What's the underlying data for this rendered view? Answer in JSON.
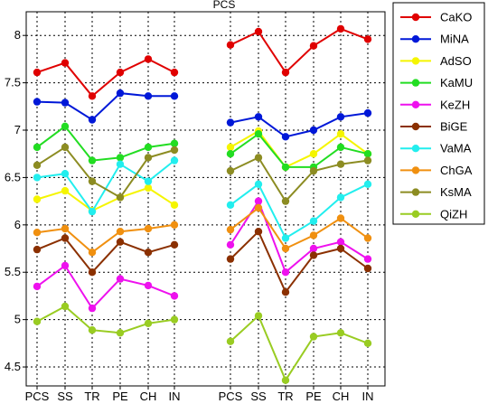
{
  "chart_data": {
    "type": "line",
    "title": "PCS",
    "xlabel": "",
    "ylabel": "",
    "ylim": [
      4.3,
      8.25
    ],
    "yticks": [
      4.5,
      5,
      5.5,
      6,
      6.5,
      7,
      7.5,
      8
    ],
    "ytick_labels": [
      "4.5",
      "5",
      "5.5",
      "6",
      "6.5",
      "7",
      "7.5",
      "8"
    ],
    "grid": true,
    "legend_position": "right",
    "groups": [
      {
        "categories": [
          "PCS",
          "SS",
          "TR",
          "PE",
          "CH",
          "IN"
        ]
      },
      {
        "categories": [
          "PCS",
          "SS",
          "TR",
          "PE",
          "CH",
          "IN"
        ]
      }
    ],
    "series": [
      {
        "name": "CaKO",
        "color": "#e00000",
        "values": [
          [
            7.61,
            7.71,
            7.36,
            7.61,
            7.75,
            7.61
          ],
          [
            7.9,
            8.04,
            7.61,
            7.89,
            8.07,
            7.96
          ]
        ]
      },
      {
        "name": "MiNA",
        "color": "#0018d8",
        "values": [
          [
            7.3,
            7.29,
            7.11,
            7.39,
            7.36,
            7.36
          ],
          [
            7.08,
            7.14,
            6.93,
            7.0,
            7.14,
            7.18
          ]
        ]
      },
      {
        "name": "AdSO",
        "color": "#f5f500",
        "values": [
          [
            6.27,
            6.36,
            6.15,
            6.29,
            6.39,
            6.21
          ],
          [
            6.82,
            6.99,
            6.61,
            6.75,
            6.96,
            6.75
          ]
        ]
      },
      {
        "name": "KaMU",
        "color": "#22dd22",
        "values": [
          [
            6.82,
            7.04,
            6.68,
            6.71,
            6.82,
            6.86
          ],
          [
            6.75,
            6.96,
            6.61,
            6.61,
            6.82,
            6.75
          ]
        ]
      },
      {
        "name": "KeZH",
        "color": "#ee11ee",
        "values": [
          [
            5.35,
            5.57,
            5.12,
            5.43,
            5.36,
            5.25
          ],
          [
            5.79,
            6.25,
            5.5,
            5.75,
            5.82,
            5.64
          ]
        ]
      },
      {
        "name": "BiGE",
        "color": "#8b3000",
        "values": [
          [
            5.74,
            5.86,
            5.5,
            5.82,
            5.71,
            5.79
          ],
          [
            5.64,
            5.93,
            5.29,
            5.68,
            5.75,
            5.54
          ]
        ]
      },
      {
        "name": "VaMA",
        "color": "#22eeee",
        "values": [
          [
            6.5,
            6.54,
            6.14,
            6.64,
            6.46,
            6.68
          ],
          [
            6.21,
            6.43,
            5.86,
            6.04,
            6.29,
            6.43
          ]
        ]
      },
      {
        "name": "ChGA",
        "color": "#f09010",
        "values": [
          [
            5.92,
            5.96,
            5.71,
            5.93,
            5.96,
            6.0
          ],
          [
            5.95,
            6.18,
            5.75,
            5.89,
            6.07,
            5.86
          ]
        ]
      },
      {
        "name": "KsMA",
        "color": "#8c8c22",
        "values": [
          [
            6.63,
            6.82,
            6.46,
            6.29,
            6.71,
            6.79
          ],
          [
            6.57,
            6.71,
            6.25,
            6.57,
            6.64,
            6.68
          ]
        ]
      },
      {
        "name": "QiZH",
        "color": "#99cc22",
        "values": [
          [
            4.98,
            5.14,
            4.89,
            4.86,
            4.96,
            5.0
          ],
          [
            4.77,
            5.04,
            4.36,
            4.82,
            4.86,
            4.75
          ]
        ]
      }
    ]
  }
}
